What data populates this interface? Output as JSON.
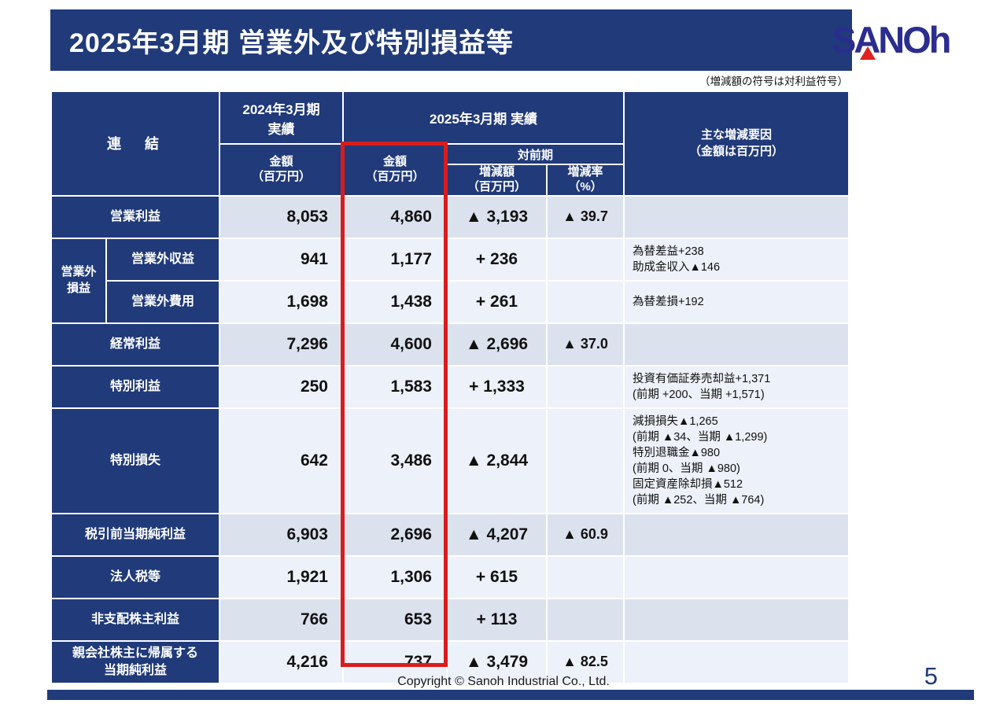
{
  "slide": {
    "title": "2025年3月期 営業外及び特別損益等",
    "note": "（増減額の符号は対利益符号）",
    "logo_text": "SANOh",
    "colors": {
      "navy": "#203a7a",
      "logo_navy": "#2b2d8e",
      "highlight_red": "#d91c1c",
      "row_dark": "#dbe2ee",
      "row_light": "#edf1f9"
    }
  },
  "table": {
    "headers": {
      "consolidated": "連　結",
      "fy2024": "2024年3月期\n実績",
      "fy2025": "2025年3月期  実績",
      "amount_2024": "金額\n（百万円）",
      "amount_2025": "金額\n（百万円）",
      "vs_prev": "対前期",
      "change_amount": "増減額\n（百万円）",
      "change_rate": "増減率\n（%）",
      "factors": "主な増減要因\n（金額は百万円）"
    },
    "rows": [
      {
        "label": "営業利益",
        "fy2024": "8,053",
        "fy2025": "4,860",
        "change": "▲ 3,193",
        "rate": "▲ 39.7",
        "factors": "",
        "shade": "dark"
      },
      {
        "group": {
          "label": "営業外\n損益",
          "rowspan": 2
        },
        "in_group": true,
        "label": "営業外収益",
        "fy2024": "941",
        "fy2025": "1,177",
        "change": "+ 236",
        "rate": "",
        "factors": "為替差益+238\n助成金収入▲146",
        "shade": "light"
      },
      {
        "in_group": true,
        "label": "営業外費用",
        "fy2024": "1,698",
        "fy2025": "1,438",
        "change": "+ 261",
        "rate": "",
        "factors": "為替差損+192",
        "shade": "light"
      },
      {
        "label": "経常利益",
        "fy2024": "7,296",
        "fy2025": "4,600",
        "change": "▲ 2,696",
        "rate": "▲ 37.0",
        "factors": "",
        "shade": "dark"
      },
      {
        "label": "特別利益",
        "fy2024": "250",
        "fy2025": "1,583",
        "change": "+ 1,333",
        "rate": "",
        "factors": "投資有価証券売却益+1,371\n(前期 +200、当期 +1,571)",
        "shade": "light"
      },
      {
        "label": "特別損失",
        "fy2024": "642",
        "fy2025": "3,486",
        "change": "▲ 2,844",
        "rate": "",
        "factors": "減損損失▲1,265\n(前期 ▲34、当期 ▲1,299)\n特別退職金▲980\n(前期 0、当期 ▲980)\n固定資産除却損▲512\n(前期 ▲252、当期 ▲764)",
        "shade": "light",
        "tall": true
      },
      {
        "label": "税引前当期純利益",
        "fy2024": "6,903",
        "fy2025": "2,696",
        "change": "▲ 4,207",
        "rate": "▲ 60.9",
        "factors": "",
        "shade": "dark"
      },
      {
        "label": "法人税等",
        "fy2024": "1,921",
        "fy2025": "1,306",
        "change": "+ 615",
        "rate": "",
        "factors": "",
        "shade": "light"
      },
      {
        "label": "非支配株主利益",
        "fy2024": "766",
        "fy2025": "653",
        "change": "+ 113",
        "rate": "",
        "factors": "",
        "shade": "dark"
      },
      {
        "label": "親会社株主に帰属する\n当期純利益",
        "fy2024": "4,216",
        "fy2025": "737",
        "change": "▲ 3,479",
        "rate": "▲ 82.5",
        "factors": "",
        "shade": "light"
      }
    ]
  },
  "footer": {
    "copyright": "Copyright © Sanoh Industrial Co., Ltd.",
    "page": "5"
  }
}
